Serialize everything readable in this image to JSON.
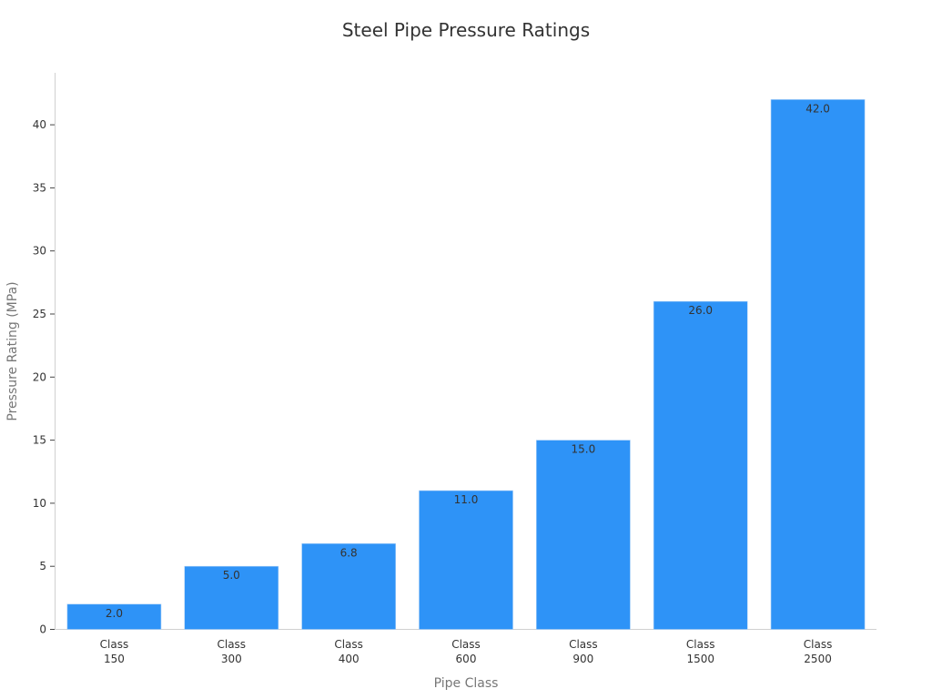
{
  "chart_data": {
    "type": "bar",
    "title": "Steel Pipe Pressure Ratings",
    "xlabel": "Pipe Class",
    "ylabel": "Pressure Rating (MPa)",
    "categories": [
      [
        "Class",
        "150"
      ],
      [
        "Class",
        "300"
      ],
      [
        "Class",
        "400"
      ],
      [
        "Class",
        "600"
      ],
      [
        "Class",
        "900"
      ],
      [
        "Class",
        "1500"
      ],
      [
        "Class",
        "2500"
      ]
    ],
    "values": [
      2.0,
      5.0,
      6.8,
      11.0,
      15.0,
      26.0,
      42.0
    ],
    "data_labels": [
      "2.0",
      "5.0",
      "6.8",
      "11.0",
      "15.0",
      "26.0",
      "42.0"
    ],
    "yticks": [
      0,
      5,
      10,
      15,
      20,
      25,
      30,
      35,
      40
    ],
    "ylim": [
      0,
      44
    ],
    "grid": false,
    "legend": "none",
    "bar_color": "#2e93f7"
  }
}
